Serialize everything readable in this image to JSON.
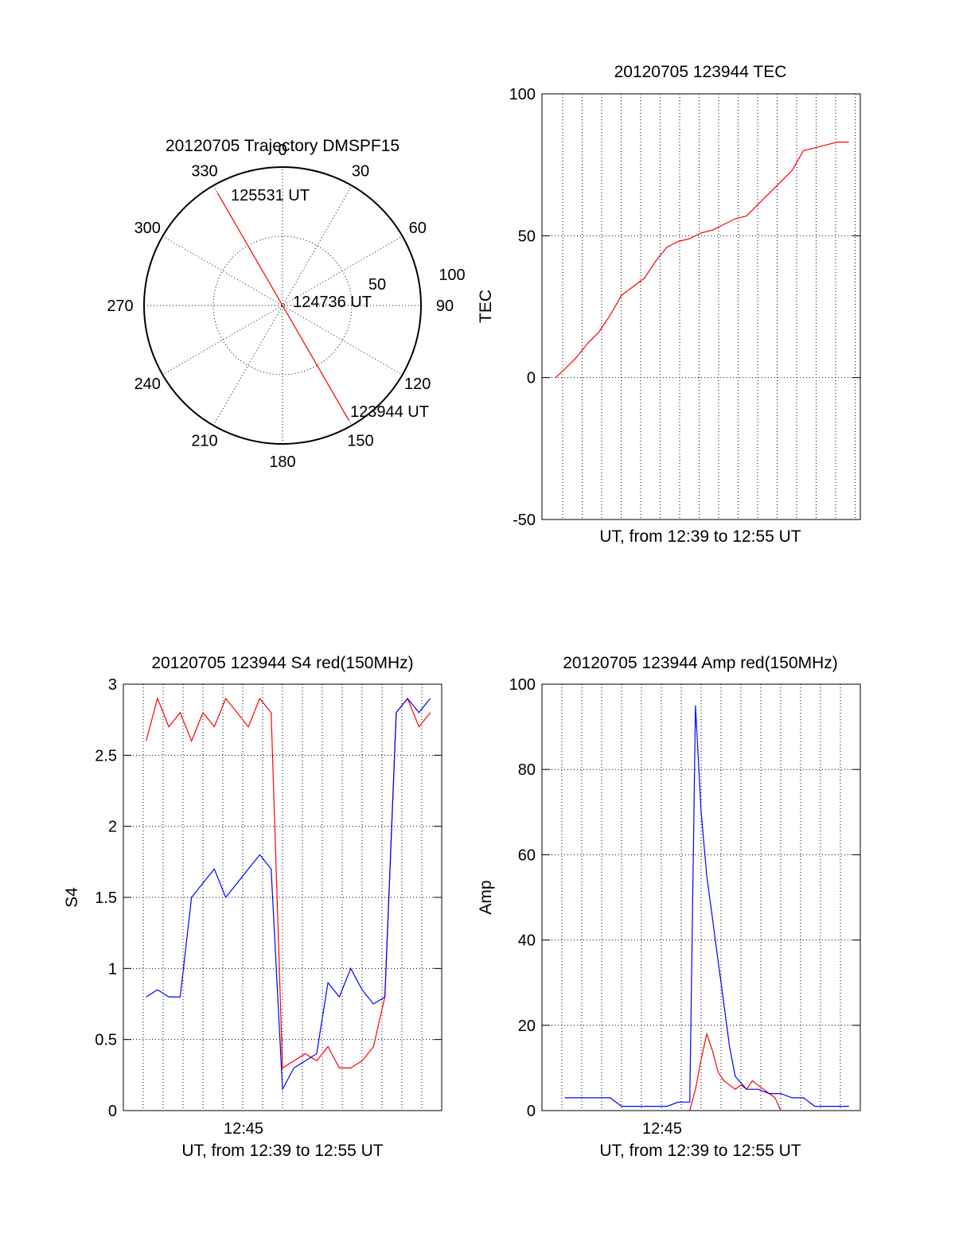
{
  "chart_data": [
    {
      "id": "trajectory",
      "type": "polar",
      "title": "20120705 Trajectory DMSPF15",
      "angle_labels": [
        "0",
        "30",
        "60",
        "90",
        "120",
        "150",
        "180",
        "210",
        "240",
        "270",
        "300",
        "330"
      ],
      "radius_labels": [
        "50",
        "100"
      ],
      "rlim": [
        0,
        100
      ],
      "series": [
        {
          "color": "#ff0000",
          "points": [
            {
              "azimuth": 150,
              "elevation_radius": 96,
              "label": "123944 UT"
            },
            {
              "azimuth": 150,
              "elevation_radius": 30
            },
            {
              "azimuth": 0,
              "elevation_radius": 0,
              "label": "124736 UT"
            },
            {
              "azimuth": 330,
              "elevation_radius": 94,
              "label": "125531 UT"
            }
          ]
        }
      ]
    },
    {
      "id": "tec",
      "type": "line",
      "title": "20120705 123944 TEC",
      "xlabel": "UT, from 12:39 to 12:55 UT",
      "ylabel": "TEC",
      "ylim": [
        -50,
        100
      ],
      "yticks": [
        "-50",
        "0",
        "50",
        "100"
      ],
      "xlim_minutes": [
        12.66,
        12.92
      ],
      "series": [
        {
          "color": "#ff0000",
          "x_hours": [
            12.662,
            12.67,
            12.68,
            12.69,
            12.7,
            12.71,
            12.72,
            12.73,
            12.74,
            12.75,
            12.76,
            12.77,
            12.78,
            12.79,
            12.8,
            12.81,
            12.82,
            12.83,
            12.84,
            12.85,
            12.86,
            12.87,
            12.88,
            12.89,
            12.9,
            12.91,
            12.92
          ],
          "y": [
            0,
            3,
            7,
            12,
            16,
            22,
            29,
            32,
            35,
            41,
            46,
            48,
            49,
            51,
            52,
            54,
            56,
            57,
            61,
            65,
            69,
            73,
            80,
            81,
            82,
            83,
            83
          ]
        }
      ]
    },
    {
      "id": "s4",
      "type": "line",
      "title": "20120705 123944 S4 red(150MHz)",
      "xlabel": "UT, from 12:39 to 12:55 UT",
      "ylabel": "S4",
      "ylim": [
        0,
        3
      ],
      "yticks": [
        "0",
        "0.5",
        "1",
        "1.5",
        "2",
        "2.5",
        "3"
      ],
      "xticks": [
        "12:45"
      ],
      "series": [
        {
          "color": "#ff0000",
          "x_hours": [
            12.67,
            12.68,
            12.69,
            12.7,
            12.71,
            12.72,
            12.73,
            12.74,
            12.75,
            12.76,
            12.77,
            12.78,
            12.79,
            12.8,
            12.81,
            12.82,
            12.83,
            12.84,
            12.85,
            12.86,
            12.87,
            12.88,
            12.89,
            12.9,
            12.91,
            12.92
          ],
          "y": [
            2.6,
            2.9,
            2.7,
            2.8,
            2.6,
            2.8,
            2.7,
            2.9,
            2.8,
            2.7,
            2.9,
            2.8,
            0.3,
            0.35,
            0.4,
            0.35,
            0.45,
            0.3,
            0.3,
            0.35,
            0.45,
            0.8,
            2.8,
            2.9,
            2.7,
            2.8
          ]
        },
        {
          "color": "#0000ff",
          "x_hours": [
            12.67,
            12.68,
            12.69,
            12.7,
            12.71,
            12.72,
            12.73,
            12.74,
            12.75,
            12.76,
            12.77,
            12.78,
            12.79,
            12.8,
            12.81,
            12.82,
            12.83,
            12.84,
            12.85,
            12.86,
            12.87,
            12.88,
            12.89,
            12.9,
            12.91,
            12.92
          ],
          "y": [
            0.8,
            0.85,
            0.8,
            0.8,
            1.5,
            1.6,
            1.7,
            1.5,
            1.6,
            1.7,
            1.8,
            1.7,
            0.15,
            0.3,
            0.35,
            0.4,
            0.9,
            0.8,
            1.0,
            0.85,
            0.75,
            0.8,
            2.8,
            2.9,
            2.8,
            2.9
          ]
        }
      ]
    },
    {
      "id": "amp",
      "type": "line",
      "title": "20120705 123944 Amp red(150MHz)",
      "xlabel": "UT, from 12:39 to 12:55 UT",
      "ylabel": "Amp",
      "ylim": [
        0,
        100
      ],
      "yticks": [
        "0",
        "20",
        "40",
        "60",
        "80",
        "100"
      ],
      "xticks": [
        "12:45"
      ],
      "series": [
        {
          "color": "#ff0000",
          "x_hours": [
            12.78,
            12.785,
            12.79,
            12.795,
            12.8,
            12.805,
            12.81,
            12.815,
            12.82,
            12.825,
            12.83,
            12.835,
            12.84,
            12.845,
            12.85,
            12.855,
            12.86
          ],
          "y": [
            0,
            5,
            12,
            18,
            14,
            9,
            7,
            6,
            5,
            6,
            5,
            7,
            6,
            5,
            4,
            3,
            0
          ]
        },
        {
          "color": "#0000ff",
          "x_hours": [
            12.67,
            12.68,
            12.69,
            12.7,
            12.71,
            12.72,
            12.73,
            12.74,
            12.75,
            12.76,
            12.77,
            12.78,
            12.785,
            12.79,
            12.795,
            12.8,
            12.805,
            12.81,
            12.815,
            12.82,
            12.83,
            12.84,
            12.85,
            12.86,
            12.87,
            12.88,
            12.89,
            12.9,
            12.91,
            12.92
          ],
          "y": [
            3,
            3,
            3,
            3,
            3,
            1,
            1,
            1,
            1,
            1,
            2,
            2,
            95,
            70,
            55,
            45,
            35,
            25,
            15,
            8,
            5,
            5,
            4,
            4,
            3,
            3,
            1,
            1,
            1,
            1
          ]
        }
      ]
    }
  ]
}
